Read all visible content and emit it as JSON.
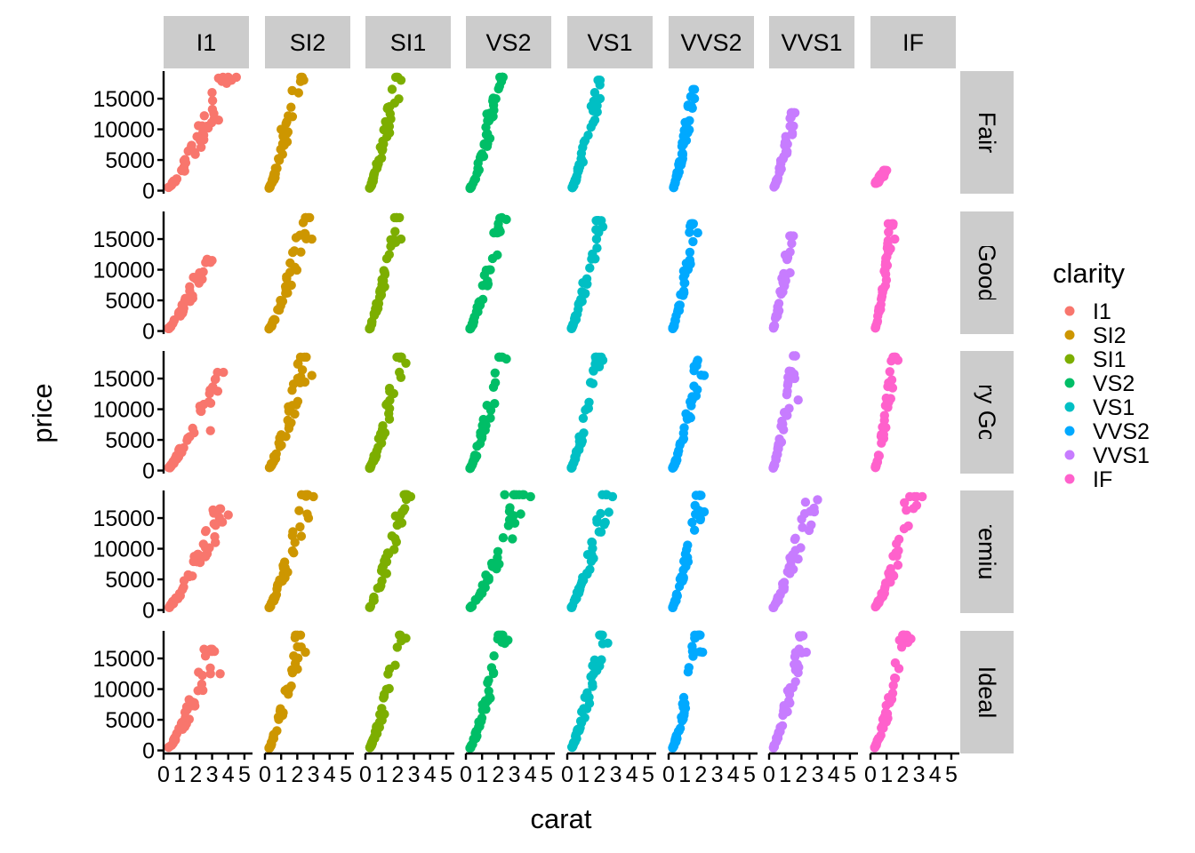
{
  "chart_data": {
    "type": "scatter",
    "facet_cols": [
      "I1",
      "SI2",
      "SI1",
      "VS2",
      "VS1",
      "VVS2",
      "VVS1",
      "IF"
    ],
    "facet_rows": [
      "Fair",
      "Good",
      "Very Good",
      "Premium",
      "Ideal"
    ],
    "xlabel": "carat",
    "ylabel": "price",
    "xlim": [
      0,
      5.5
    ],
    "ylim": [
      -500,
      19500
    ],
    "x_ticks": [
      0,
      1,
      2,
      3,
      4,
      5
    ],
    "y_ticks": [
      0,
      5000,
      10000,
      15000
    ],
    "legend": {
      "title": "clarity",
      "position": "right",
      "items": [
        {
          "label": "I1",
          "color": "#F8766D"
        },
        {
          "label": "SI2",
          "color": "#CD9600"
        },
        {
          "label": "SI1",
          "color": "#7CAE00"
        },
        {
          "label": "VS2",
          "color": "#00BE67"
        },
        {
          "label": "VS1",
          "color": "#00BFC4"
        },
        {
          "label": "VVS2",
          "color": "#00A9FF"
        },
        {
          "label": "VVS1",
          "color": "#C77CFF"
        },
        {
          "label": "IF",
          "color": "#FF61CC"
        }
      ]
    },
    "grid": false,
    "panels": [
      {
        "row": "Fair",
        "col": "I1",
        "x_range": [
          0.3,
          4.5
        ],
        "y_range": [
          500,
          18500
        ],
        "extreme_points": [
          [
            4.5,
            18500
          ],
          [
            4.2,
            18000
          ],
          [
            3.9,
            17500
          ],
          [
            3.0,
            16000
          ],
          [
            3.4,
            11500
          ]
        ]
      },
      {
        "row": "Fair",
        "col": "SI2",
        "x_range": [
          0.25,
          2.5
        ],
        "y_range": [
          400,
          18500
        ],
        "extreme_points": [
          [
            2.4,
            18000
          ],
          [
            2.2,
            17800
          ],
          [
            1.0,
            10000
          ]
        ]
      },
      {
        "row": "Fair",
        "col": "SI1",
        "x_range": [
          0.25,
          2.3
        ],
        "y_range": [
          400,
          18500
        ],
        "extreme_points": [
          [
            2.0,
            18500
          ],
          [
            2.2,
            18000
          ]
        ]
      },
      {
        "row": "Fair",
        "col": "VS2",
        "x_range": [
          0.25,
          2.5
        ],
        "y_range": [
          350,
          18500
        ],
        "extreme_points": [
          [
            2.1,
            18500
          ],
          [
            2.2,
            17800
          ],
          [
            1.3,
            12500
          ]
        ]
      },
      {
        "row": "Fair",
        "col": "VS1",
        "x_range": [
          0.3,
          2.3
        ],
        "y_range": [
          500,
          18000
        ],
        "extreme_points": [
          [
            2.0,
            18000
          ],
          [
            1.7,
            16000
          ]
        ]
      },
      {
        "row": "Fair",
        "col": "VVS2",
        "x_range": [
          0.3,
          1.7
        ],
        "y_range": [
          500,
          16500
        ],
        "extreme_points": [
          [
            1.6,
            16500
          ],
          [
            1.6,
            15000
          ],
          [
            1.1,
            10700
          ]
        ]
      },
      {
        "row": "Fair",
        "col": "VVS1",
        "x_range": [
          0.3,
          1.7
        ],
        "y_range": [
          600,
          12700
        ],
        "extreme_points": [
          [
            1.6,
            12700
          ],
          [
            1.3,
            11800
          ],
          [
            1.3,
            10500
          ]
        ]
      },
      {
        "row": "Fair",
        "col": "IF",
        "x_range": [
          0.3,
          1.0
        ],
        "y_range": [
          1200,
          3300
        ],
        "extreme_points": [
          [
            1.0,
            3300
          ]
        ]
      },
      {
        "row": "Good",
        "col": "I1",
        "x_range": [
          0.3,
          3.0
        ],
        "y_range": [
          400,
          11700
        ],
        "extreme_points": [
          [
            3.0,
            11500
          ],
          [
            2.9,
            11200
          ],
          [
            2.0,
            8500
          ]
        ]
      },
      {
        "row": "Good",
        "col": "SI2",
        "x_range": [
          0.25,
          3.0
        ],
        "y_range": [
          350,
          18500
        ],
        "extreme_points": [
          [
            2.9,
            15000
          ],
          [
            2.5,
            18500
          ]
        ]
      },
      {
        "row": "Good",
        "col": "SI1",
        "x_range": [
          0.25,
          2.2
        ],
        "y_range": [
          350,
          18500
        ],
        "extreme_points": [
          [
            2.1,
            18500
          ],
          [
            2.2,
            15000
          ]
        ]
      },
      {
        "row": "Good",
        "col": "VS2",
        "x_range": [
          0.25,
          2.5
        ],
        "y_range": [
          350,
          18500
        ],
        "extreme_points": [
          [
            2.1,
            18400
          ],
          [
            2.5,
            18200
          ]
        ]
      },
      {
        "row": "Good",
        "col": "VS1",
        "x_range": [
          0.25,
          2.2
        ],
        "y_range": [
          400,
          18000
        ],
        "extreme_points": [
          [
            2.1,
            18000
          ],
          [
            2.2,
            17000
          ]
        ]
      },
      {
        "row": "Good",
        "col": "VVS2",
        "x_range": [
          0.25,
          1.8
        ],
        "y_range": [
          400,
          17500
        ],
        "extreme_points": [
          [
            1.5,
            17400
          ],
          [
            1.8,
            16000
          ]
        ]
      },
      {
        "row": "Good",
        "col": "VVS1",
        "x_range": [
          0.25,
          1.5
        ],
        "y_range": [
          450,
          15500
        ],
        "extreme_points": [
          [
            1.5,
            15500
          ],
          [
            1.3,
            9500
          ]
        ]
      },
      {
        "row": "Good",
        "col": "IF",
        "x_range": [
          0.3,
          1.5
        ],
        "y_range": [
          500,
          17500
        ],
        "extreme_points": [
          [
            1.1,
            17500
          ],
          [
            1.5,
            15000
          ]
        ]
      },
      {
        "row": "Very Good",
        "col": "I1",
        "x_range": [
          0.3,
          3.7
        ],
        "y_range": [
          400,
          16000
        ],
        "extreme_points": [
          [
            3.7,
            16000
          ],
          [
            2.8,
            11200
          ],
          [
            2.9,
            6500
          ]
        ]
      },
      {
        "row": "Very Good",
        "col": "SI2",
        "x_range": [
          0.25,
          2.9
        ],
        "y_range": [
          350,
          18500
        ],
        "extreme_points": [
          [
            2.9,
            15500
          ],
          [
            2.2,
            18500
          ]
        ]
      },
      {
        "row": "Very Good",
        "col": "SI1",
        "x_range": [
          0.25,
          2.5
        ],
        "y_range": [
          350,
          18500
        ],
        "extreme_points": [
          [
            2.2,
            18500
          ],
          [
            2.5,
            17500
          ]
        ]
      },
      {
        "row": "Very Good",
        "col": "VS2",
        "x_range": [
          0.25,
          2.5
        ],
        "y_range": [
          350,
          18500
        ],
        "extreme_points": [
          [
            2.2,
            18500
          ],
          [
            2.5,
            18200
          ]
        ]
      },
      {
        "row": "Very Good",
        "col": "VS1",
        "x_range": [
          0.25,
          2.2
        ],
        "y_range": [
          400,
          18500
        ],
        "extreme_points": [
          [
            2.1,
            18500
          ],
          [
            2.2,
            18000
          ]
        ]
      },
      {
        "row": "Very Good",
        "col": "VVS2",
        "x_range": [
          0.25,
          2.2
        ],
        "y_range": [
          400,
          18000
        ],
        "extreme_points": [
          [
            1.8,
            18000
          ],
          [
            2.2,
            15500
          ]
        ]
      },
      {
        "row": "Very Good",
        "col": "VVS1",
        "x_range": [
          0.25,
          1.8
        ],
        "y_range": [
          400,
          18700
        ],
        "extreme_points": [
          [
            1.5,
            18700
          ],
          [
            1.8,
            11500
          ]
        ]
      },
      {
        "row": "Very Good",
        "col": "IF",
        "x_range": [
          0.3,
          1.7
        ],
        "y_range": [
          500,
          18500
        ],
        "extreme_points": [
          [
            1.5,
            18500
          ],
          [
            1.7,
            18000
          ]
        ]
      },
      {
        "row": "Premium",
        "col": "I1",
        "x_range": [
          0.3,
          4.0
        ],
        "y_range": [
          400,
          16500
        ],
        "extreme_points": [
          [
            3.5,
            16500
          ],
          [
            4.0,
            15500
          ],
          [
            3.2,
            11000
          ]
        ]
      },
      {
        "row": "Premium",
        "col": "SI2",
        "x_range": [
          0.25,
          3.0
        ],
        "y_range": [
          350,
          18800
        ],
        "extreme_points": [
          [
            2.5,
            18800
          ],
          [
            3.0,
            18500
          ]
        ]
      },
      {
        "row": "Premium",
        "col": "SI1",
        "x_range": [
          0.25,
          2.8
        ],
        "y_range": [
          350,
          18800
        ],
        "extreme_points": [
          [
            2.4,
            18800
          ],
          [
            2.8,
            18500
          ]
        ]
      },
      {
        "row": "Premium",
        "col": "VS2",
        "x_range": [
          0.25,
          4.0
        ],
        "y_range": [
          350,
          18800
        ],
        "extreme_points": [
          [
            4.0,
            18500
          ],
          [
            2.4,
            18800
          ]
        ]
      },
      {
        "row": "Premium",
        "col": "VS1",
        "x_range": [
          0.25,
          2.8
        ],
        "y_range": [
          400,
          18800
        ],
        "extreme_points": [
          [
            2.4,
            18800
          ],
          [
            2.8,
            18500
          ]
        ]
      },
      {
        "row": "Premium",
        "col": "VVS2",
        "x_range": [
          0.25,
          2.2
        ],
        "y_range": [
          400,
          18700
        ],
        "extreme_points": [
          [
            2.0,
            18700
          ],
          [
            2.2,
            16000
          ]
        ]
      },
      {
        "row": "Premium",
        "col": "VVS1",
        "x_range": [
          0.25,
          3.0
        ],
        "y_range": [
          400,
          18200
        ],
        "extreme_points": [
          [
            3.0,
            18000
          ],
          [
            2.8,
            16000
          ]
        ]
      },
      {
        "row": "Premium",
        "col": "IF",
        "x_range": [
          0.3,
          3.2
        ],
        "y_range": [
          500,
          18500
        ],
        "extreme_points": [
          [
            3.2,
            18500
          ],
          [
            2.1,
            17500
          ]
        ]
      },
      {
        "row": "Ideal",
        "col": "I1",
        "x_range": [
          0.3,
          3.5
        ],
        "y_range": [
          400,
          16500
        ],
        "extreme_points": [
          [
            2.5,
            16500
          ],
          [
            3.5,
            12500
          ],
          [
            2.9,
            12500
          ]
        ]
      },
      {
        "row": "Ideal",
        "col": "SI2",
        "x_range": [
          0.25,
          2.5
        ],
        "y_range": [
          350,
          18800
        ],
        "extreme_points": [
          [
            2.2,
            18800
          ],
          [
            2.5,
            16000
          ]
        ]
      },
      {
        "row": "Ideal",
        "col": "SI1",
        "x_range": [
          0.25,
          2.5
        ],
        "y_range": [
          350,
          18800
        ],
        "extreme_points": [
          [
            2.1,
            18800
          ],
          [
            2.5,
            18300
          ]
        ]
      },
      {
        "row": "Ideal",
        "col": "VS2",
        "x_range": [
          0.25,
          2.6
        ],
        "y_range": [
          350,
          18800
        ],
        "extreme_points": [
          [
            2.0,
            18800
          ],
          [
            2.6,
            18000
          ]
        ]
      },
      {
        "row": "Ideal",
        "col": "VS1",
        "x_range": [
          0.25,
          2.5
        ],
        "y_range": [
          400,
          18800
        ],
        "extreme_points": [
          [
            2.0,
            18800
          ],
          [
            2.5,
            17500
          ]
        ]
      },
      {
        "row": "Ideal",
        "col": "VVS2",
        "x_range": [
          0.25,
          2.1
        ],
        "y_range": [
          400,
          18800
        ],
        "extreme_points": [
          [
            1.9,
            18800
          ],
          [
            2.1,
            16000
          ]
        ]
      },
      {
        "row": "Ideal",
        "col": "VVS1",
        "x_range": [
          0.25,
          2.3
        ],
        "y_range": [
          400,
          18700
        ],
        "extreme_points": [
          [
            2.1,
            18700
          ],
          [
            2.3,
            16000
          ]
        ]
      },
      {
        "row": "Ideal",
        "col": "IF",
        "x_range": [
          0.25,
          2.5
        ],
        "y_range": [
          450,
          18800
        ],
        "extreme_points": [
          [
            2.0,
            18800
          ],
          [
            2.5,
            18200
          ]
        ]
      }
    ]
  }
}
